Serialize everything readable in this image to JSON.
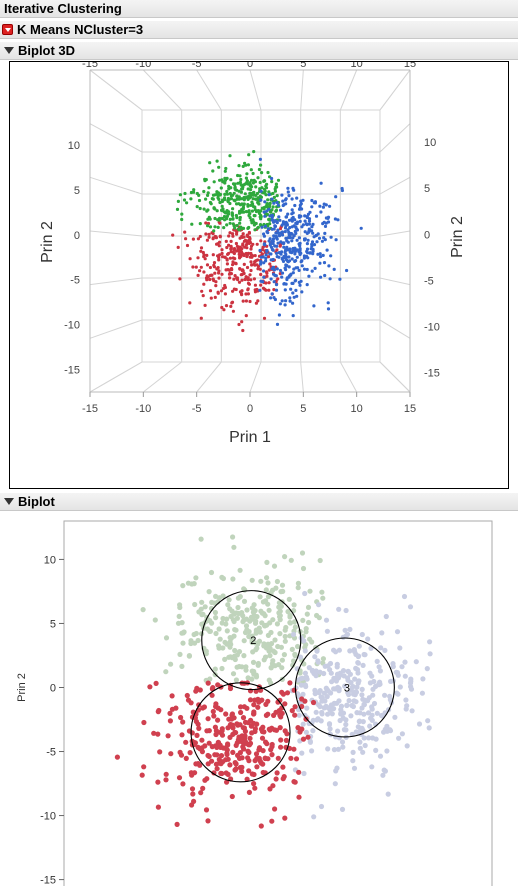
{
  "report": {
    "title": "Iterative Clustering",
    "subtitle": "K Means NCluster=3",
    "biplot3d_title": "Biplot 3D",
    "biplot_title": "Biplot"
  },
  "chart_data": [
    {
      "type": "scatter",
      "name": "biplot-3d",
      "xlabel": "Prin 1",
      "ylabel": "Prin 2",
      "ylabel_right": "Prin 2",
      "x_ticks_front": [
        "-15",
        "-10",
        "-5",
        "0",
        "5",
        "10",
        "15"
      ],
      "y_ticks_left": [
        "10",
        "5",
        "0",
        "-5",
        "-10",
        "-15"
      ],
      "y_ticks_right": [
        "10",
        "5",
        "0",
        "-5",
        "-10",
        "-15"
      ],
      "xlim": [
        -15,
        15
      ],
      "ylim": [
        -15,
        15
      ],
      "colors": {
        "cluster1": "#cc3340",
        "cluster2": "#2ea83c",
        "cluster3": "#3366cc"
      },
      "clusters": [
        {
          "id": 1,
          "center": [
            -1.5,
            -2.5
          ],
          "spread": [
            2.6,
            2.5
          ],
          "count": 380
        },
        {
          "id": 2,
          "center": [
            -1.0,
            3.5
          ],
          "spread": [
            2.7,
            2.0
          ],
          "count": 420
        },
        {
          "id": 3,
          "center": [
            3.5,
            -0.8
          ],
          "spread": [
            2.2,
            2.8
          ],
          "count": 420
        }
      ]
    },
    {
      "type": "scatter",
      "name": "biplot",
      "ylabel": "Prin 2",
      "y_ticks": [
        "10",
        "5",
        "0",
        "-5",
        "-10",
        "-15"
      ],
      "ylim": [
        -15.5,
        13
      ],
      "xlim": [
        -15.5,
        16.5
      ],
      "colors": {
        "cluster1": "#d0404f",
        "cluster2": "#c0d4bc",
        "cluster3": "#c8cde2",
        "circle": "#000000"
      },
      "circle_labels": [
        "2",
        "3"
      ],
      "circles": [
        {
          "label": "",
          "center": [
            -2.3,
            -3.5
          ],
          "radius": 3.7
        },
        {
          "label": "2",
          "center": [
            -1.5,
            3.7
          ],
          "radius": 3.7
        },
        {
          "label": "3",
          "center": [
            5.5,
            0.0
          ],
          "radius": 3.7
        }
      ],
      "clusters": [
        {
          "id": 1,
          "center": [
            -2.5,
            -3.8
          ],
          "spread": [
            3.0,
            2.6
          ],
          "count": 360
        },
        {
          "id": 2,
          "center": [
            -1.3,
            4.0
          ],
          "spread": [
            3.2,
            2.6
          ],
          "count": 360
        },
        {
          "id": 3,
          "center": [
            5.3,
            -0.6
          ],
          "spread": [
            2.6,
            3.0
          ],
          "count": 360
        }
      ]
    }
  ]
}
